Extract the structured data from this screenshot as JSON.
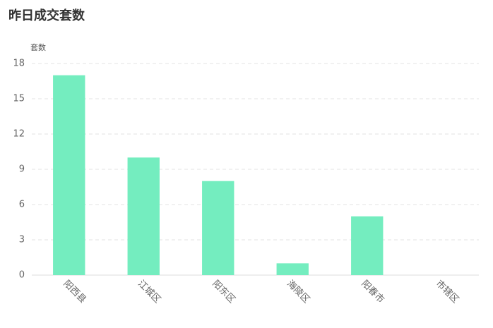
{
  "chart_data": {
    "type": "bar",
    "title": "昨日成交套数",
    "y_label": "套数",
    "categories": [
      "阳西县",
      "江城区",
      "阳东区",
      "海陵区",
      "阳春市",
      "市辖区"
    ],
    "values": [
      17,
      10,
      8,
      1,
      5,
      0
    ],
    "color": "#74edbf",
    "ylim": [
      0,
      18
    ],
    "yticks": [
      0,
      3,
      6,
      9,
      12,
      15,
      18
    ],
    "grid": true
  }
}
